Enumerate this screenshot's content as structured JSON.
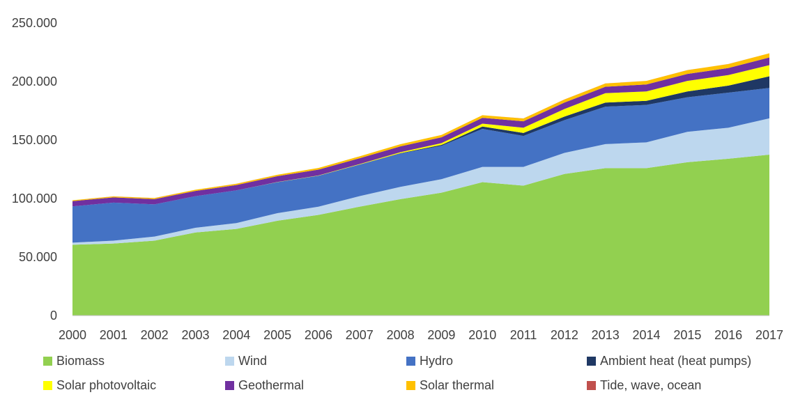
{
  "chart_data": {
    "type": "area",
    "stacked": true,
    "title": "",
    "xlabel": "",
    "ylabel": "",
    "x": [
      "2000",
      "2001",
      "2002",
      "2003",
      "2004",
      "2005",
      "2006",
      "2007",
      "2008",
      "2009",
      "2010",
      "2011",
      "2012",
      "2013",
      "2014",
      "2015",
      "2016",
      "2017"
    ],
    "ylim": [
      0,
      250000
    ],
    "y_ticks": [
      0,
      50000,
      100000,
      150000,
      200000,
      250000
    ],
    "y_tick_labels": [
      "0",
      "50.000",
      "100.000",
      "150.000",
      "200.000",
      "250.000"
    ],
    "grid": false,
    "legend_position": "bottom",
    "series": [
      {
        "name": "Biomass",
        "color": "#92D050",
        "values": [
          60500,
          61500,
          64000,
          71000,
          74000,
          81000,
          86000,
          93000,
          99500,
          105000,
          114000,
          111000,
          121000,
          126000,
          126000,
          131000,
          134000,
          137500
        ]
      },
      {
        "name": "Wind",
        "color": "#BDD7EE",
        "values": [
          1800,
          2500,
          3500,
          4000,
          5000,
          6500,
          7000,
          9000,
          10500,
          11500,
          13000,
          16000,
          18000,
          20500,
          22000,
          26000,
          26500,
          31000
        ]
      },
      {
        "name": "Hydro",
        "color": "#4472C4",
        "values": [
          31000,
          32500,
          27500,
          27000,
          28000,
          26500,
          26500,
          27000,
          28500,
          28500,
          32500,
          26500,
          28000,
          32000,
          32000,
          29500,
          30000,
          26000
        ]
      },
      {
        "name": "Ambient heat (heat pumps)",
        "color": "#1F3864",
        "values": [
          0,
          0,
          0,
          0,
          0,
          0,
          0,
          0,
          300,
          800,
          2000,
          2500,
          3000,
          3500,
          3500,
          5000,
          6000,
          10000
        ]
      },
      {
        "name": "Solar photovoltaic",
        "color": "#FFFF00",
        "values": [
          0,
          0,
          0,
          0,
          0,
          100,
          200,
          400,
          800,
          1500,
          2500,
          4500,
          6500,
          8000,
          8000,
          9000,
          9000,
          9500
        ]
      },
      {
        "name": "Geothermal",
        "color": "#7030A0",
        "values": [
          4500,
          4500,
          4500,
          4500,
          4500,
          5000,
          5000,
          5000,
          5000,
          5000,
          5000,
          5500,
          5500,
          5500,
          6000,
          6000,
          6000,
          6500
        ]
      },
      {
        "name": "Solar thermal",
        "color": "#FFC000",
        "values": [
          700,
          800,
          900,
          1000,
          1100,
          1200,
          1400,
          1600,
          1800,
          2000,
          2200,
          2400,
          2600,
          2800,
          3000,
          3200,
          3400,
          3600
        ]
      },
      {
        "name": "Tide, wave, ocean",
        "color": "#C0504D",
        "values": [
          40,
          40,
          40,
          40,
          40,
          40,
          40,
          40,
          40,
          40,
          40,
          40,
          40,
          40,
          40,
          40,
          40,
          40
        ]
      }
    ]
  }
}
